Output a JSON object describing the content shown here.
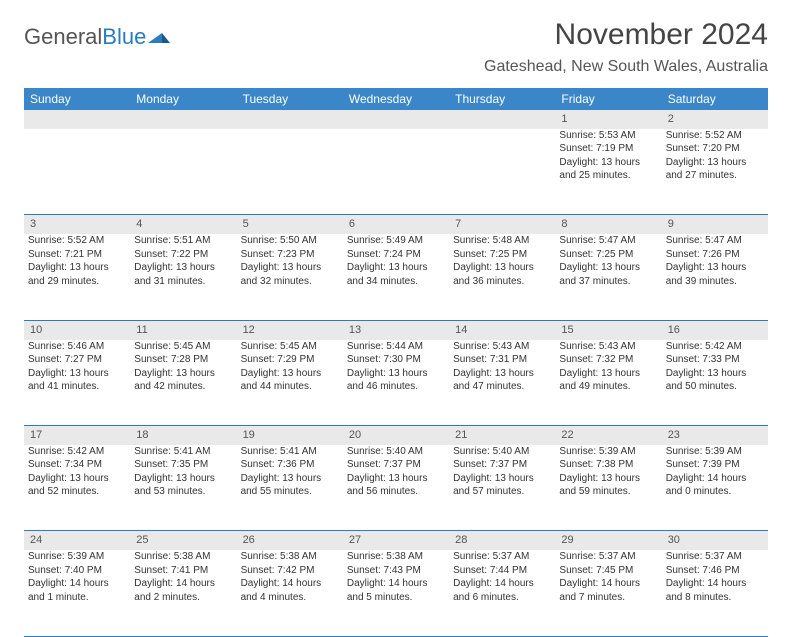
{
  "logo": {
    "part1": "General",
    "part2": "Blue"
  },
  "title": "November 2024",
  "location": "Gateshead, New South Wales, Australia",
  "colors": {
    "header_bg": "#3a86c8",
    "header_text": "#ffffff",
    "daynum_bg": "#e9e9e9",
    "border": "#2b7bbf",
    "body_text": "#333333",
    "logo_gray": "#555555",
    "logo_blue": "#2b7bbf"
  },
  "weekdays": [
    "Sunday",
    "Monday",
    "Tuesday",
    "Wednesday",
    "Thursday",
    "Friday",
    "Saturday"
  ],
  "weeks": [
    {
      "nums": [
        "",
        "",
        "",
        "",
        "",
        "1",
        "2"
      ],
      "cells": [
        null,
        null,
        null,
        null,
        null,
        {
          "sunrise": "Sunrise: 5:53 AM",
          "sunset": "Sunset: 7:19 PM",
          "daylight": "Daylight: 13 hours and 25 minutes."
        },
        {
          "sunrise": "Sunrise: 5:52 AM",
          "sunset": "Sunset: 7:20 PM",
          "daylight": "Daylight: 13 hours and 27 minutes."
        }
      ]
    },
    {
      "nums": [
        "3",
        "4",
        "5",
        "6",
        "7",
        "8",
        "9"
      ],
      "cells": [
        {
          "sunrise": "Sunrise: 5:52 AM",
          "sunset": "Sunset: 7:21 PM",
          "daylight": "Daylight: 13 hours and 29 minutes."
        },
        {
          "sunrise": "Sunrise: 5:51 AM",
          "sunset": "Sunset: 7:22 PM",
          "daylight": "Daylight: 13 hours and 31 minutes."
        },
        {
          "sunrise": "Sunrise: 5:50 AM",
          "sunset": "Sunset: 7:23 PM",
          "daylight": "Daylight: 13 hours and 32 minutes."
        },
        {
          "sunrise": "Sunrise: 5:49 AM",
          "sunset": "Sunset: 7:24 PM",
          "daylight": "Daylight: 13 hours and 34 minutes."
        },
        {
          "sunrise": "Sunrise: 5:48 AM",
          "sunset": "Sunset: 7:25 PM",
          "daylight": "Daylight: 13 hours and 36 minutes."
        },
        {
          "sunrise": "Sunrise: 5:47 AM",
          "sunset": "Sunset: 7:25 PM",
          "daylight": "Daylight: 13 hours and 37 minutes."
        },
        {
          "sunrise": "Sunrise: 5:47 AM",
          "sunset": "Sunset: 7:26 PM",
          "daylight": "Daylight: 13 hours and 39 minutes."
        }
      ]
    },
    {
      "nums": [
        "10",
        "11",
        "12",
        "13",
        "14",
        "15",
        "16"
      ],
      "cells": [
        {
          "sunrise": "Sunrise: 5:46 AM",
          "sunset": "Sunset: 7:27 PM",
          "daylight": "Daylight: 13 hours and 41 minutes."
        },
        {
          "sunrise": "Sunrise: 5:45 AM",
          "sunset": "Sunset: 7:28 PM",
          "daylight": "Daylight: 13 hours and 42 minutes."
        },
        {
          "sunrise": "Sunrise: 5:45 AM",
          "sunset": "Sunset: 7:29 PM",
          "daylight": "Daylight: 13 hours and 44 minutes."
        },
        {
          "sunrise": "Sunrise: 5:44 AM",
          "sunset": "Sunset: 7:30 PM",
          "daylight": "Daylight: 13 hours and 46 minutes."
        },
        {
          "sunrise": "Sunrise: 5:43 AM",
          "sunset": "Sunset: 7:31 PM",
          "daylight": "Daylight: 13 hours and 47 minutes."
        },
        {
          "sunrise": "Sunrise: 5:43 AM",
          "sunset": "Sunset: 7:32 PM",
          "daylight": "Daylight: 13 hours and 49 minutes."
        },
        {
          "sunrise": "Sunrise: 5:42 AM",
          "sunset": "Sunset: 7:33 PM",
          "daylight": "Daylight: 13 hours and 50 minutes."
        }
      ]
    },
    {
      "nums": [
        "17",
        "18",
        "19",
        "20",
        "21",
        "22",
        "23"
      ],
      "cells": [
        {
          "sunrise": "Sunrise: 5:42 AM",
          "sunset": "Sunset: 7:34 PM",
          "daylight": "Daylight: 13 hours and 52 minutes."
        },
        {
          "sunrise": "Sunrise: 5:41 AM",
          "sunset": "Sunset: 7:35 PM",
          "daylight": "Daylight: 13 hours and 53 minutes."
        },
        {
          "sunrise": "Sunrise: 5:41 AM",
          "sunset": "Sunset: 7:36 PM",
          "daylight": "Daylight: 13 hours and 55 minutes."
        },
        {
          "sunrise": "Sunrise: 5:40 AM",
          "sunset": "Sunset: 7:37 PM",
          "daylight": "Daylight: 13 hours and 56 minutes."
        },
        {
          "sunrise": "Sunrise: 5:40 AM",
          "sunset": "Sunset: 7:37 PM",
          "daylight": "Daylight: 13 hours and 57 minutes."
        },
        {
          "sunrise": "Sunrise: 5:39 AM",
          "sunset": "Sunset: 7:38 PM",
          "daylight": "Daylight: 13 hours and 59 minutes."
        },
        {
          "sunrise": "Sunrise: 5:39 AM",
          "sunset": "Sunset: 7:39 PM",
          "daylight": "Daylight: 14 hours and 0 minutes."
        }
      ]
    },
    {
      "nums": [
        "24",
        "25",
        "26",
        "27",
        "28",
        "29",
        "30"
      ],
      "cells": [
        {
          "sunrise": "Sunrise: 5:39 AM",
          "sunset": "Sunset: 7:40 PM",
          "daylight": "Daylight: 14 hours and 1 minute."
        },
        {
          "sunrise": "Sunrise: 5:38 AM",
          "sunset": "Sunset: 7:41 PM",
          "daylight": "Daylight: 14 hours and 2 minutes."
        },
        {
          "sunrise": "Sunrise: 5:38 AM",
          "sunset": "Sunset: 7:42 PM",
          "daylight": "Daylight: 14 hours and 4 minutes."
        },
        {
          "sunrise": "Sunrise: 5:38 AM",
          "sunset": "Sunset: 7:43 PM",
          "daylight": "Daylight: 14 hours and 5 minutes."
        },
        {
          "sunrise": "Sunrise: 5:37 AM",
          "sunset": "Sunset: 7:44 PM",
          "daylight": "Daylight: 14 hours and 6 minutes."
        },
        {
          "sunrise": "Sunrise: 5:37 AM",
          "sunset": "Sunset: 7:45 PM",
          "daylight": "Daylight: 14 hours and 7 minutes."
        },
        {
          "sunrise": "Sunrise: 5:37 AM",
          "sunset": "Sunset: 7:46 PM",
          "daylight": "Daylight: 14 hours and 8 minutes."
        }
      ]
    }
  ]
}
